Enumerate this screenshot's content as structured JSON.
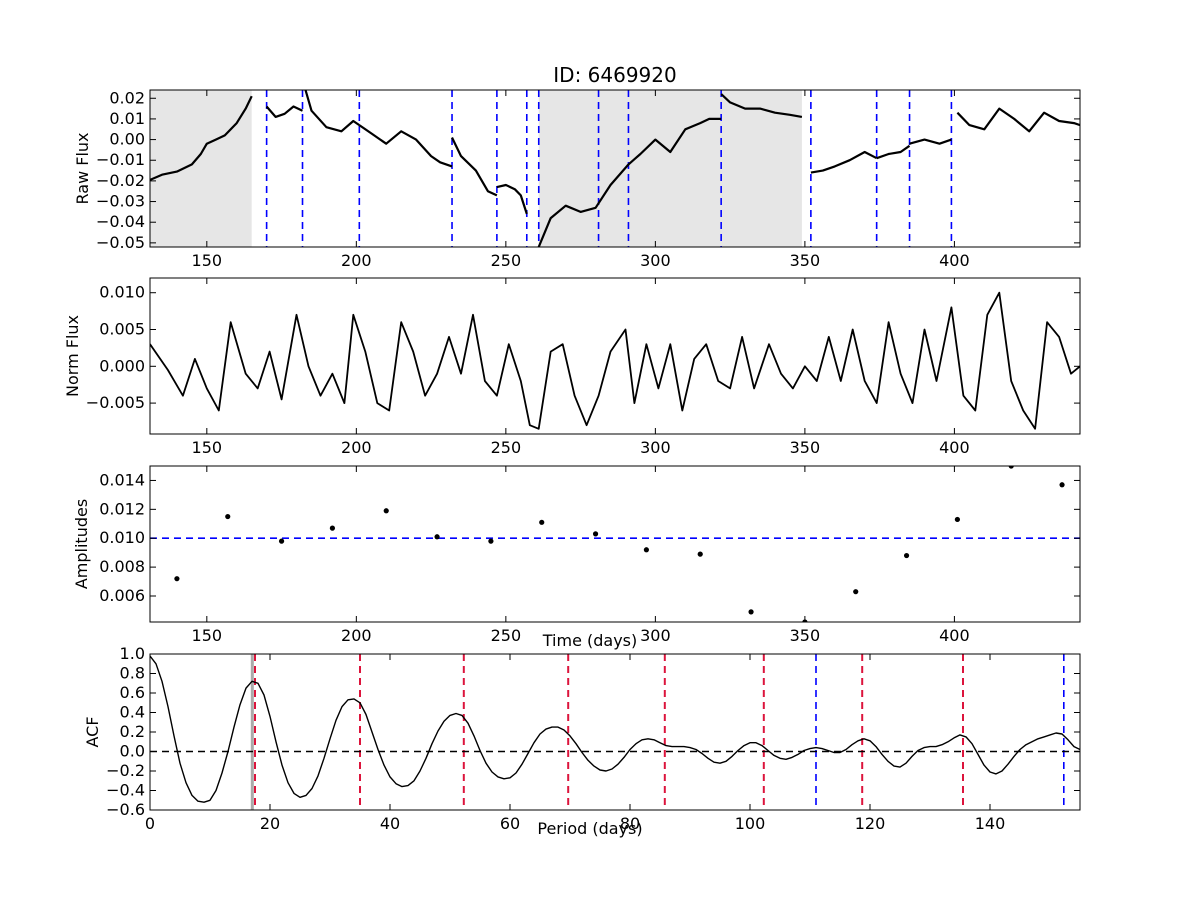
{
  "chart_data": [
    {
      "type": "line",
      "title": "ID: 6469920",
      "xlabel": "",
      "ylabel": "Raw Flux",
      "xlim": [
        131,
        442
      ],
      "ylim": [
        -0.052,
        0.024
      ],
      "xticks": [
        150,
        200,
        250,
        300,
        350,
        400
      ],
      "yticks": [
        -0.05,
        -0.04,
        -0.03,
        -0.02,
        -0.01,
        0.0,
        0.01,
        0.02
      ],
      "ytick_labels": [
        "−0.05",
        "−0.04",
        "−0.03",
        "−0.02",
        "−0.01",
        "0.00",
        "0.01",
        "0.02"
      ],
      "grid": false,
      "shaded_regions": [
        [
          131,
          165
        ],
        [
          261,
          349
        ]
      ],
      "shade_color": "#e6e6e6",
      "vlines": [
        170,
        182,
        201,
        232,
        247,
        257,
        261,
        281,
        291,
        322,
        352,
        374,
        385,
        399
      ],
      "vline_color": "#0000ff",
      "line_color": "#000000",
      "segments": [
        {
          "x": [
            131,
            135,
            140,
            145,
            148,
            150,
            153,
            156,
            160,
            163,
            165
          ],
          "y": [
            -0.0195,
            -0.017,
            -0.0155,
            -0.012,
            -0.007,
            -0.002,
            0.0,
            0.002,
            0.008,
            0.015,
            0.021
          ]
        },
        {
          "x": [
            170,
            173,
            176,
            179,
            182
          ],
          "y": [
            0.016,
            0.011,
            0.0125,
            0.016,
            0.014
          ]
        },
        {
          "x": [
            183,
            185,
            190,
            195,
            199,
            201
          ],
          "y": [
            0.024,
            0.014,
            0.006,
            0.004,
            0.009,
            0.007
          ]
        },
        {
          "x": [
            201,
            205,
            210,
            215,
            220,
            225,
            228,
            232
          ],
          "y": [
            0.007,
            0.003,
            -0.002,
            0.004,
            0.0,
            -0.008,
            -0.011,
            -0.013
          ]
        },
        {
          "x": [
            232,
            235,
            240,
            244,
            247
          ],
          "y": [
            0.001,
            -0.008,
            -0.015,
            -0.025,
            -0.027
          ]
        },
        {
          "x": [
            247,
            250,
            253,
            255,
            257
          ],
          "y": [
            -0.023,
            -0.022,
            -0.024,
            -0.027,
            -0.036
          ]
        },
        {
          "x": [
            261,
            265,
            270,
            275,
            280,
            285,
            291
          ],
          "y": [
            -0.052,
            -0.038,
            -0.032,
            -0.035,
            -0.033,
            -0.022,
            -0.012
          ]
        },
        {
          "x": [
            291,
            295,
            300,
            305,
            310,
            315,
            318,
            322
          ],
          "y": [
            -0.012,
            -0.007,
            0.0,
            -0.006,
            0.005,
            0.008,
            0.01,
            0.01
          ]
        },
        {
          "x": [
            322,
            325,
            330,
            335,
            340,
            345,
            349
          ],
          "y": [
            0.022,
            0.018,
            0.015,
            0.015,
            0.013,
            0.012,
            0.011
          ]
        },
        {
          "x": [
            352,
            356,
            360,
            365,
            370,
            374
          ],
          "y": [
            -0.016,
            -0.015,
            -0.013,
            -0.01,
            -0.006,
            -0.009
          ]
        },
        {
          "x": [
            374,
            378,
            382,
            385
          ],
          "y": [
            -0.009,
            -0.007,
            -0.006,
            -0.003
          ]
        },
        {
          "x": [
            385,
            390,
            395,
            399
          ],
          "y": [
            -0.002,
            0.0,
            -0.002,
            0.0
          ]
        },
        {
          "x": [
            401,
            405,
            410,
            415,
            420,
            425,
            430,
            435,
            440,
            442
          ],
          "y": [
            0.013,
            0.007,
            0.005,
            0.015,
            0.01,
            0.004,
            0.013,
            0.009,
            0.008,
            0.007
          ]
        }
      ]
    },
    {
      "type": "line",
      "title": "",
      "xlabel": "",
      "ylabel": "Norm Flux",
      "xlim": [
        131,
        442
      ],
      "ylim": [
        -0.0092,
        0.012
      ],
      "xticks": [
        150,
        200,
        250,
        300,
        350,
        400
      ],
      "yticks": [
        -0.005,
        0.0,
        0.005,
        0.01
      ],
      "ytick_labels": [
        "−0.005",
        "0.000",
        "0.005",
        "0.010"
      ],
      "grid": false,
      "line_color": "#000000",
      "x": [
        131,
        137,
        142,
        146,
        150,
        154,
        158,
        163,
        167,
        171,
        175,
        180,
        184,
        188,
        192,
        196,
        199,
        203,
        207,
        211,
        215,
        219,
        223,
        227,
        231,
        235,
        239,
        243,
        247,
        251,
        255,
        258,
        261,
        265,
        269,
        273,
        277,
        281,
        285,
        290,
        293,
        297,
        301,
        305,
        309,
        313,
        317,
        321,
        325,
        329,
        333,
        338,
        342,
        346,
        350,
        354,
        358,
        362,
        366,
        370,
        374,
        378,
        382,
        386,
        390,
        394,
        399,
        403,
        407,
        411,
        415,
        419,
        423,
        427,
        431,
        435,
        439,
        442
      ],
      "y": [
        0.003,
        -0.0005,
        -0.004,
        0.001,
        -0.003,
        -0.006,
        0.006,
        -0.001,
        -0.003,
        0.002,
        -0.0045,
        0.007,
        0.0,
        -0.004,
        -0.001,
        -0.005,
        0.007,
        0.002,
        -0.005,
        -0.006,
        0.006,
        0.002,
        -0.004,
        -0.001,
        0.004,
        -0.001,
        0.007,
        -0.002,
        -0.004,
        0.003,
        -0.002,
        -0.008,
        -0.0085,
        0.002,
        0.003,
        -0.004,
        -0.008,
        -0.004,
        0.002,
        0.005,
        -0.005,
        0.003,
        -0.003,
        0.003,
        -0.006,
        0.001,
        0.003,
        -0.002,
        -0.003,
        0.004,
        -0.003,
        0.003,
        -0.001,
        -0.003,
        0.0,
        -0.002,
        0.004,
        -0.002,
        0.005,
        -0.002,
        -0.005,
        0.006,
        -0.001,
        -0.005,
        0.005,
        -0.002,
        0.008,
        -0.004,
        -0.006,
        0.007,
        0.01,
        -0.002,
        -0.006,
        -0.0085,
        0.006,
        0.004,
        -0.001,
        0.0
      ]
    },
    {
      "type": "scatter",
      "title": "",
      "xlabel": "Time (days)",
      "ylabel": "Amplitudes",
      "xlim": [
        131,
        442
      ],
      "ylim": [
        0.0042,
        0.015
      ],
      "xticks": [
        150,
        200,
        250,
        300,
        350,
        400
      ],
      "yticks": [
        0.006,
        0.008,
        0.01,
        0.012,
        0.014
      ],
      "ytick_labels": [
        "0.006",
        "0.008",
        "0.010",
        "0.012",
        "0.014"
      ],
      "grid": false,
      "marker_color": "#000000",
      "hline": 0.01,
      "hline_color": "#0000ff",
      "x": [
        140,
        157,
        175,
        192,
        210,
        227,
        245,
        262,
        280,
        297,
        315,
        332,
        350,
        367,
        384,
        401,
        419,
        436
      ],
      "y": [
        0.0072,
        0.0115,
        0.0098,
        0.0107,
        0.0119,
        0.0101,
        0.0098,
        0.0111,
        0.0103,
        0.0092,
        0.0089,
        0.0049,
        0.0042,
        0.0063,
        0.0088,
        0.0113,
        0.015,
        0.0137
      ]
    },
    {
      "type": "line",
      "title": "",
      "xlabel": "Period (days)",
      "ylabel": "ACF",
      "xlim": [
        0,
        155
      ],
      "ylim": [
        -0.6,
        1.0
      ],
      "xticks": [
        0,
        20,
        40,
        60,
        80,
        100,
        120,
        140
      ],
      "yticks": [
        -0.6,
        -0.4,
        -0.2,
        0.0,
        0.2,
        0.4,
        0.6,
        0.8,
        1.0
      ],
      "ytick_labels": [
        "−0.6",
        "−0.4",
        "−0.2",
        "0.0",
        "0.2",
        "0.4",
        "0.6",
        "0.8",
        "1.0"
      ],
      "grid": false,
      "line_color": "#000000",
      "hline": 0.0,
      "hline_color": "#000000",
      "highlight_band": [
        16.8,
        17.3
      ],
      "highlight_color": "#aaaaaa",
      "red_vlines": [
        17.5,
        35.0,
        52.3,
        69.7,
        85.8,
        102.3,
        118.7,
        135.5
      ],
      "red_color": "#dc143c",
      "blue_vlines": [
        111.0,
        152.3
      ],
      "blue_color": "#0000ff",
      "x": [
        0,
        1,
        2,
        3,
        4,
        5,
        6,
        7,
        8,
        9,
        10,
        11,
        12,
        13,
        14,
        15,
        16,
        17,
        18,
        19,
        20,
        21,
        22,
        23,
        24,
        25,
        26,
        27,
        28,
        29,
        30,
        31,
        32,
        33,
        34,
        35,
        36,
        37,
        38,
        39,
        40,
        41,
        42,
        43,
        44,
        45,
        46,
        47,
        48,
        49,
        50,
        51,
        52,
        53,
        54,
        55,
        56,
        57,
        58,
        59,
        60,
        61,
        62,
        63,
        64,
        65,
        66,
        67,
        68,
        69,
        70,
        71,
        72,
        73,
        74,
        75,
        76,
        77,
        78,
        79,
        80,
        81,
        82,
        83,
        84,
        85,
        86,
        87,
        88,
        89,
        90,
        91,
        92,
        93,
        94,
        95,
        96,
        97,
        98,
        99,
        100,
        101,
        102,
        103,
        104,
        105,
        106,
        107,
        108,
        109,
        110,
        111,
        112,
        113,
        114,
        115,
        116,
        117,
        118,
        119,
        120,
        121,
        122,
        123,
        124,
        125,
        126,
        127,
        128,
        129,
        130,
        131,
        132,
        133,
        134,
        135,
        136,
        137,
        138,
        139,
        140,
        141,
        142,
        143,
        144,
        145,
        146,
        147,
        148,
        149,
        150,
        151,
        152,
        153,
        154,
        155
      ],
      "y": [
        0.98,
        0.9,
        0.72,
        0.46,
        0.16,
        -0.12,
        -0.32,
        -0.45,
        -0.51,
        -0.52,
        -0.5,
        -0.4,
        -0.22,
        0.0,
        0.25,
        0.48,
        0.65,
        0.72,
        0.7,
        0.58,
        0.36,
        0.1,
        -0.14,
        -0.32,
        -0.43,
        -0.47,
        -0.45,
        -0.38,
        -0.25,
        -0.07,
        0.13,
        0.32,
        0.46,
        0.53,
        0.54,
        0.5,
        0.38,
        0.2,
        0.02,
        -0.14,
        -0.26,
        -0.33,
        -0.36,
        -0.35,
        -0.3,
        -0.2,
        -0.07,
        0.08,
        0.21,
        0.31,
        0.37,
        0.39,
        0.37,
        0.29,
        0.16,
        0.01,
        -0.12,
        -0.21,
        -0.26,
        -0.28,
        -0.27,
        -0.22,
        -0.13,
        -0.02,
        0.09,
        0.18,
        0.23,
        0.25,
        0.25,
        0.22,
        0.16,
        0.08,
        -0.01,
        -0.09,
        -0.15,
        -0.19,
        -0.2,
        -0.18,
        -0.13,
        -0.06,
        0.02,
        0.08,
        0.12,
        0.13,
        0.12,
        0.09,
        0.06,
        0.05,
        0.05,
        0.05,
        0.04,
        0.02,
        -0.02,
        -0.07,
        -0.11,
        -0.12,
        -0.1,
        -0.05,
        0.01,
        0.06,
        0.09,
        0.09,
        0.06,
        0.01,
        -0.04,
        -0.07,
        -0.08,
        -0.06,
        -0.03,
        0.01,
        0.03,
        0.04,
        0.03,
        0.01,
        -0.01,
        -0.01,
        0.02,
        0.07,
        0.11,
        0.13,
        0.11,
        0.05,
        -0.03,
        -0.1,
        -0.15,
        -0.16,
        -0.12,
        -0.05,
        0.01,
        0.04,
        0.05,
        0.05,
        0.07,
        0.1,
        0.14,
        0.17,
        0.15,
        0.08,
        -0.03,
        -0.14,
        -0.21,
        -0.23,
        -0.2,
        -0.13,
        -0.05,
        0.02,
        0.07,
        0.1,
        0.13,
        0.15,
        0.17,
        0.19,
        0.18,
        0.12,
        0.05,
        0.02
      ]
    }
  ]
}
